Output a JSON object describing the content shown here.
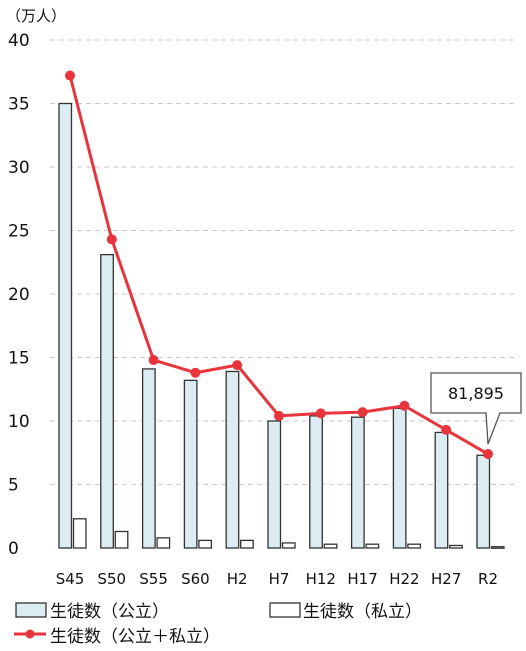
{
  "chart_data": {
    "type": "bar",
    "unit_label": "（万人）",
    "categories": [
      "S45",
      "S50",
      "S55",
      "S60",
      "H2",
      "H7",
      "H12",
      "H17",
      "H22",
      "H27",
      "R2"
    ],
    "ylim": [
      0,
      40
    ],
    "yticks": [
      "0",
      "5",
      "10",
      "15",
      "20",
      "25",
      "30",
      "35",
      "40"
    ],
    "grid": true,
    "legend_position": "bottom",
    "series": [
      {
        "name": "生徒数（公立）",
        "kind": "bar",
        "fill": "#dcecf3",
        "stroke": "#333333",
        "values": [
          35.0,
          23.1,
          14.1,
          13.2,
          13.9,
          10.0,
          10.4,
          10.3,
          11.0,
          9.1,
          7.3
        ]
      },
      {
        "name": "生徒数（私立）",
        "kind": "bar",
        "fill": "#ffffff",
        "stroke": "#333333",
        "values": [
          2.3,
          1.3,
          0.8,
          0.6,
          0.6,
          0.4,
          0.3,
          0.3,
          0.3,
          0.2,
          0.1
        ]
      },
      {
        "name": "生徒数（公立＋私立）",
        "kind": "line",
        "color": "#e8343c",
        "values": [
          37.2,
          24.3,
          14.8,
          13.8,
          14.4,
          10.4,
          10.6,
          10.7,
          11.2,
          9.3,
          7.4
        ]
      }
    ],
    "annotation": {
      "text": "81,895",
      "category": "R2"
    }
  }
}
